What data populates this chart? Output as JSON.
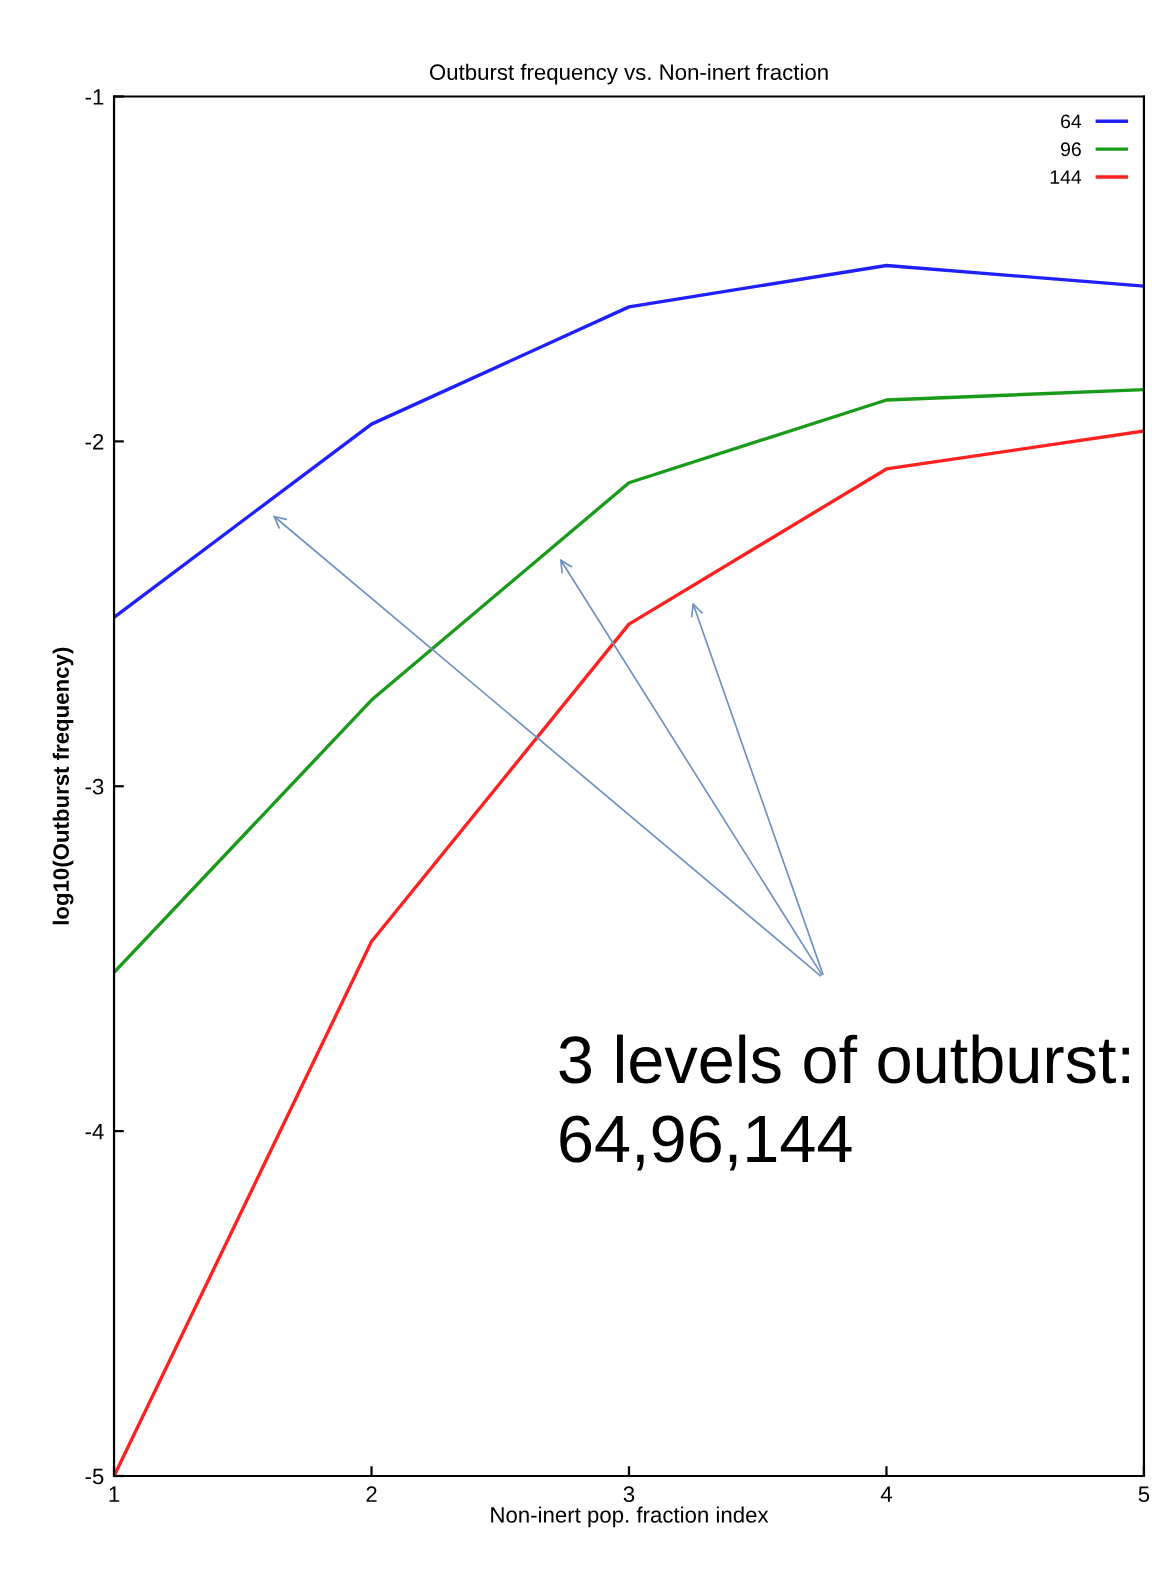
{
  "chart_data": {
    "type": "line",
    "title": "Outburst frequency vs. Non-inert fraction",
    "xlabel": "Non-inert pop. fraction index",
    "ylabel": "log10(Outburst frequency)",
    "x": [
      1,
      2,
      3,
      4,
      5
    ],
    "xlim": [
      1,
      5
    ],
    "xticks": [
      1,
      2,
      3,
      4,
      5
    ],
    "ylim": [
      -5,
      -1
    ],
    "yticks": [
      -5,
      -4,
      -3,
      -2,
      -1
    ],
    "legend": "top right",
    "grid": false,
    "marker": "none",
    "line_style": "solid",
    "series": [
      {
        "name": "64",
        "color": "#1f1fff",
        "values": [
          -2.51,
          -1.95,
          -1.61,
          -1.49,
          -1.55
        ]
      },
      {
        "name": "96",
        "color": "#1a9a1a",
        "values": [
          -3.54,
          -2.75,
          -2.12,
          -1.88,
          -1.85
        ]
      },
      {
        "name": "144",
        "color": "#ff2020",
        "values": [
          -5.0,
          -3.45,
          -2.53,
          -2.08,
          -1.97
        ]
      }
    ],
    "annotations": [
      "3 levels of outburst:\n64,96,144"
    ]
  }
}
